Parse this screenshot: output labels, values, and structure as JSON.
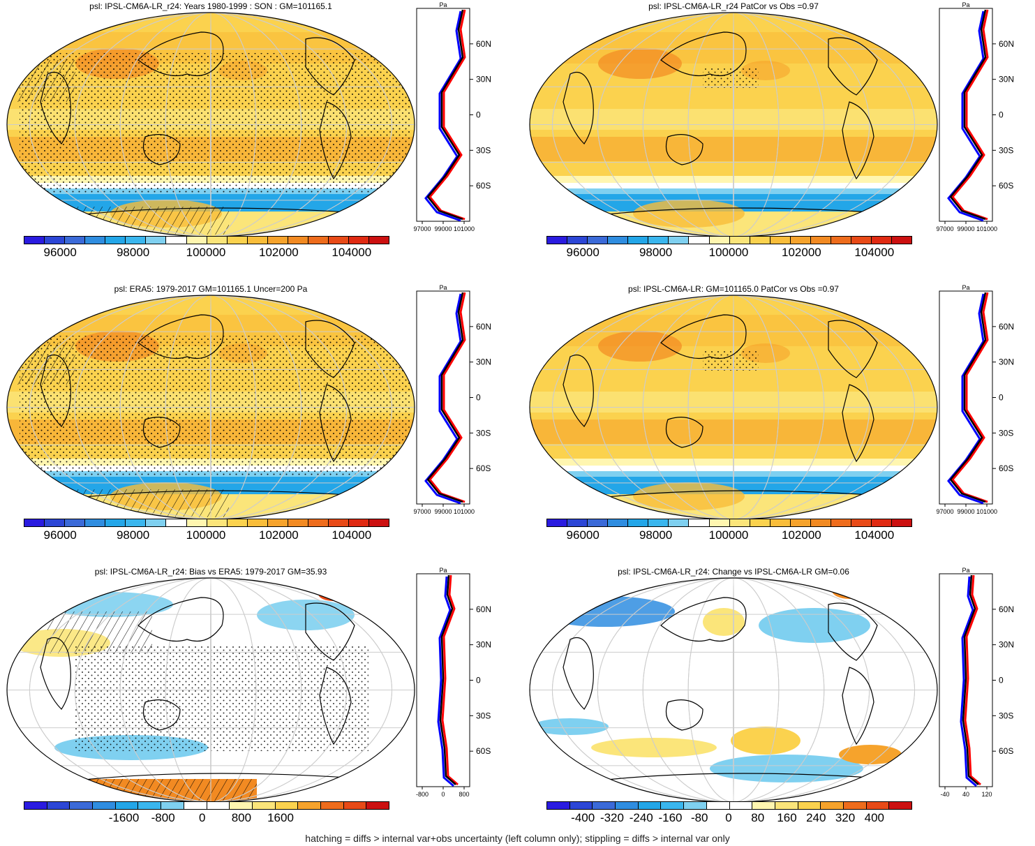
{
  "panels": [
    {
      "id": "p1",
      "title": "psl: IPSL-CM6A-LR_r24: Years 1980-1999 : SON : GM=101165.1",
      "colorbar_ticks": [
        "96000",
        "98000",
        "100000",
        "102000",
        "104000"
      ],
      "profile_axis_unit": "Pa",
      "profile_x_ticks": [
        "97000",
        "99000",
        "101000"
      ]
    },
    {
      "id": "p2",
      "title": "psl: IPSL-CM6A-LR_r24 PatCor vs Obs =0.97",
      "colorbar_ticks": [
        "96000",
        "98000",
        "100000",
        "102000",
        "104000"
      ],
      "profile_axis_unit": "Pa",
      "profile_x_ticks": [
        "97000",
        "99000",
        "101000"
      ]
    },
    {
      "id": "p3",
      "title": "psl: ERA5: 1979-2017 GM=101165.1 Uncer=200 Pa",
      "colorbar_ticks": [
        "96000",
        "98000",
        "100000",
        "102000",
        "104000"
      ],
      "profile_axis_unit": "Pa",
      "profile_x_ticks": [
        "97000",
        "99000",
        "101000"
      ]
    },
    {
      "id": "p4",
      "title": "psl: IPSL-CM6A-LR: GM=101165.0 PatCor vs Obs =0.97",
      "colorbar_ticks": [
        "96000",
        "98000",
        "100000",
        "102000",
        "104000"
      ],
      "profile_axis_unit": "Pa",
      "profile_x_ticks": [
        "97000",
        "99000",
        "101000"
      ]
    },
    {
      "id": "p5",
      "title": "psl: IPSL-CM6A-LR_r24: Bias vs ERA5: 1979-2017  GM=35.93",
      "colorbar_ticks": [
        "-1600",
        "-800",
        "0",
        "800",
        "1600"
      ],
      "profile_axis_unit": "Pa",
      "profile_x_ticks": [
        "-800",
        "0",
        "800"
      ]
    },
    {
      "id": "p6",
      "title": "psl: IPSL-CM6A-LR_r24: Change vs IPSL-CM6A-LR GM=0.06",
      "colorbar_ticks": [
        "-400",
        "-320",
        "-240",
        "-160",
        "-80",
        "0",
        "80",
        "160",
        "240",
        "320",
        "400"
      ],
      "profile_axis_unit": "Pa",
      "profile_x_ticks": [
        "-40",
        "40",
        "120"
      ]
    }
  ],
  "latitude_ticks": [
    "60N",
    "30N",
    "0",
    "30S",
    "60S"
  ],
  "colors": {
    "abs_scale": [
      "#2a1be0",
      "#2c46d6",
      "#3b6ad8",
      "#2f8de0",
      "#23a6e8",
      "#3ab6ee",
      "#7fd0f0",
      "#ffffff",
      "#fff6b0",
      "#fbe57a",
      "#fbd24e",
      "#f9bd3a",
      "#f6a32c",
      "#f28a22",
      "#ee6c1c",
      "#e84a17",
      "#e02a12",
      "#cc1010"
    ],
    "diff_scale": [
      "#2a1be0",
      "#2c46d6",
      "#3b6ad8",
      "#2f8de0",
      "#23a6e8",
      "#3ab6ee",
      "#7fd0f0",
      "#ffffff",
      "#ffffff",
      "#fff6b0",
      "#fbe57a",
      "#fbd24e",
      "#f6a32c",
      "#ee6c1c",
      "#e84a17",
      "#cc1010"
    ],
    "model_line": "#ff0000",
    "obs_line": "#0000ff",
    "mean_line": "#000000"
  },
  "footnote": "hatching = diffs > internal var+obs uncertainty (left column only); stippling = diffs > internal var only"
}
